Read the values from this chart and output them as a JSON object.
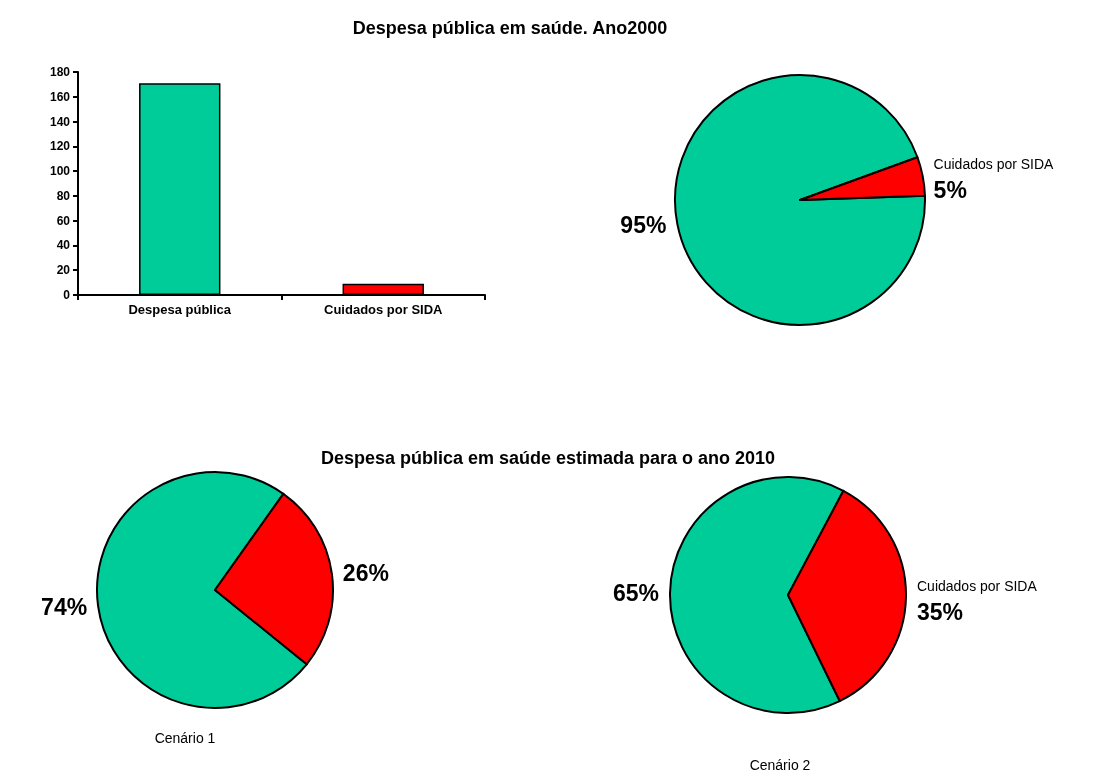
{
  "chart_data": [
    {
      "type": "bar",
      "title": "Despesa pública em saúde. Ano2000",
      "categories": [
        "Despesa pública",
        "Cuidados por SIDA"
      ],
      "values": [
        171,
        9
      ],
      "colors": [
        "#00cc99",
        "#ff0000"
      ],
      "ylim": [
        0,
        180
      ],
      "yticks": [
        0,
        20,
        40,
        60,
        80,
        100,
        120,
        140,
        160,
        180
      ]
    },
    {
      "type": "pie",
      "categories": [
        null,
        "Cuidados por SIDA"
      ],
      "values": [
        95,
        5
      ],
      "colors": [
        "#00cc99",
        "#ff0000"
      ],
      "value_labels": [
        "95%",
        "5%"
      ]
    },
    {
      "type": "pie",
      "title": "Despesa pública em saúde estimada para o ano 2010",
      "categories": [
        null,
        null
      ],
      "values": [
        74,
        26
      ],
      "colors": [
        "#00cc99",
        "#ff0000"
      ],
      "value_labels": [
        "74%",
        "26%"
      ],
      "annotations": [
        "Cenário 1"
      ]
    },
    {
      "type": "pie",
      "categories": [
        null,
        "Cuidados por SIDA"
      ],
      "values": [
        65,
        35
      ],
      "colors": [
        "#00cc99",
        "#ff0000"
      ],
      "value_labels": [
        "65%",
        "35%"
      ],
      "annotations": [
        "Cenário 2"
      ]
    }
  ]
}
